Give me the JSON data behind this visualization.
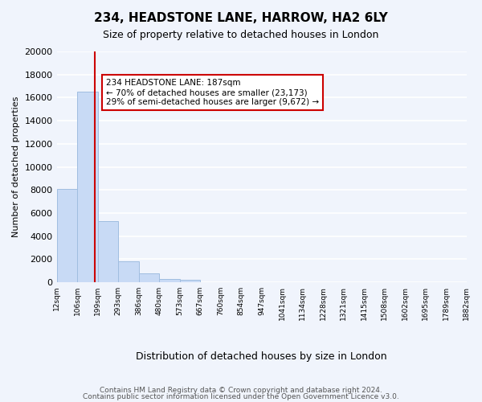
{
  "title": "234, HEADSTONE LANE, HARROW, HA2 6LY",
  "subtitle": "Size of property relative to detached houses in London",
  "xlabel": "Distribution of detached houses by size in London",
  "ylabel": "Number of detached properties",
  "bin_labels": [
    "12sqm",
    "106sqm",
    "199sqm",
    "293sqm",
    "386sqm",
    "480sqm",
    "573sqm",
    "667sqm",
    "760sqm",
    "854sqm",
    "947sqm",
    "1041sqm",
    "1134sqm",
    "1228sqm",
    "1321sqm",
    "1415sqm",
    "1508sqm",
    "1602sqm",
    "1695sqm",
    "1789sqm",
    "1882sqm"
  ],
  "bar_values": [
    8100,
    16500,
    5300,
    1800,
    750,
    300,
    200,
    0,
    0,
    0,
    0,
    0,
    0,
    0,
    0,
    0,
    0,
    0,
    0,
    0
  ],
  "bar_color": "#c8daf5",
  "bar_edge_color": "#a0bde0",
  "property_line_x": 1,
  "property_sqm": 187,
  "annotation_text": "234 HEADSTONE LANE: 187sqm\n← 70% of detached houses are smaller (23,173)\n29% of semi-detached houses are larger (9,672) →",
  "annotation_box_color": "#ffffff",
  "annotation_box_edge": "#cc0000",
  "property_line_color": "#cc0000",
  "ylim": [
    0,
    20000
  ],
  "yticks": [
    0,
    2000,
    4000,
    6000,
    8000,
    10000,
    12000,
    14000,
    16000,
    18000,
    20000
  ],
  "footer_line1": "Contains HM Land Registry data © Crown copyright and database right 2024.",
  "footer_line2": "Contains public sector information licensed under the Open Government Licence v3.0.",
  "bg_color": "#f0f4fc"
}
